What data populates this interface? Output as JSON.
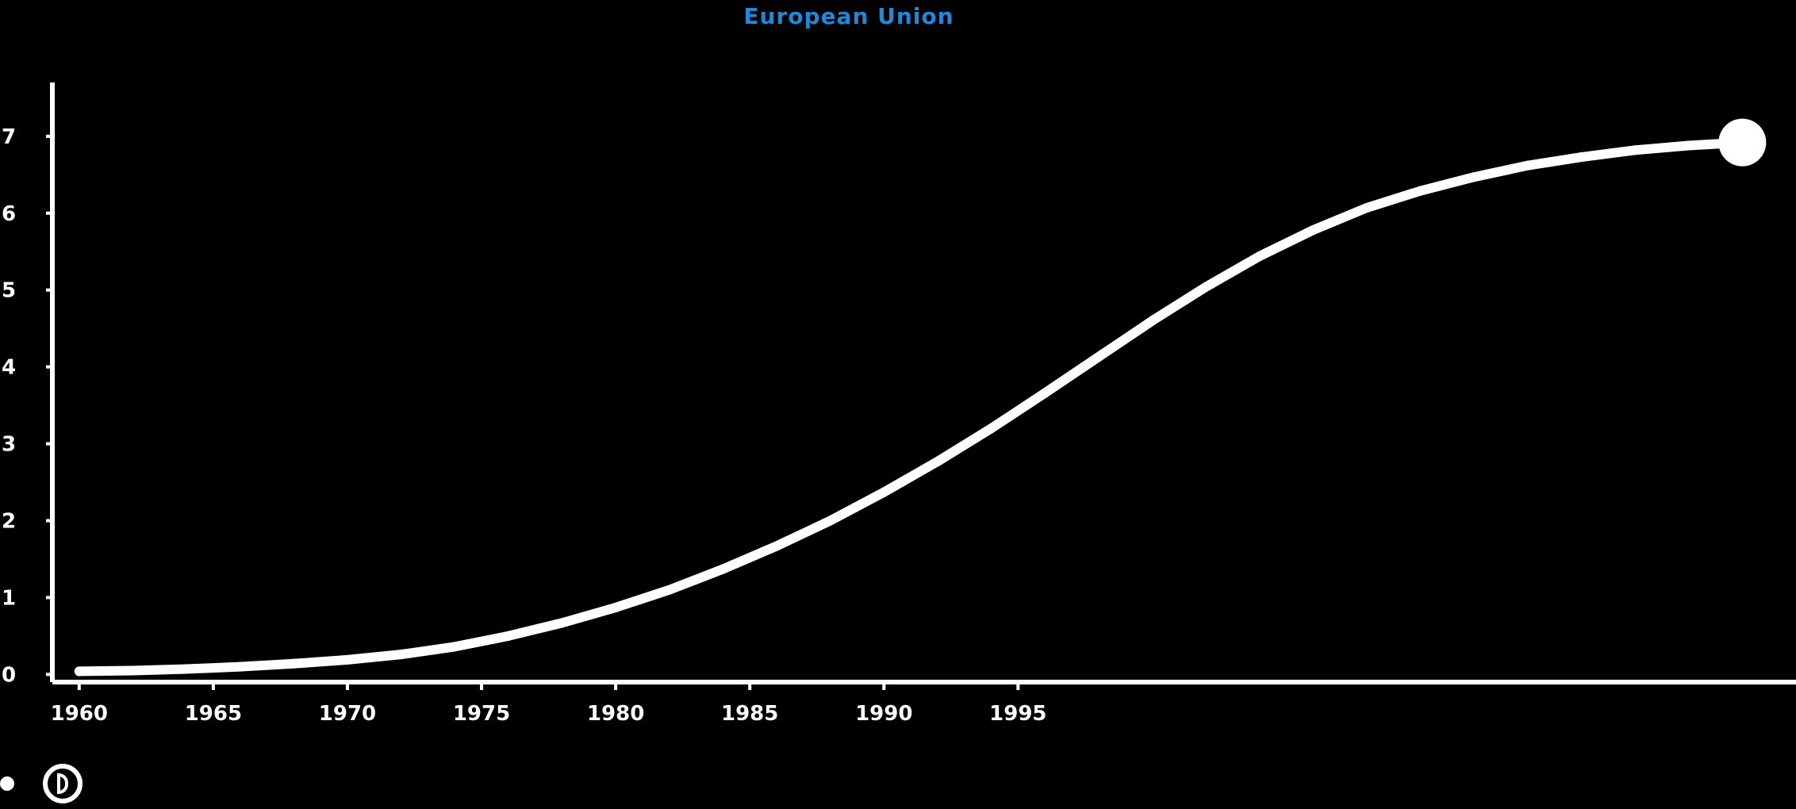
{
  "chart_data": {
    "type": "line",
    "title": "European Union",
    "title_color": "#1f88d9",
    "line_color": "#ffffff",
    "background_color": "#000000",
    "x": [
      1960,
      1962,
      1964,
      1966,
      1968,
      1970,
      1972,
      1974,
      1976,
      1978,
      1980,
      1982,
      1984,
      1986,
      1988,
      1990,
      1992,
      1994,
      1996,
      1998,
      2000,
      2002,
      2004,
      2006,
      2008,
      2010,
      2012,
      2014,
      2016,
      2018,
      2020,
      2022
    ],
    "series": [
      {
        "values": [
          0.04,
          0.05,
          0.07,
          0.1,
          0.14,
          0.19,
          0.26,
          0.36,
          0.5,
          0.67,
          0.87,
          1.1,
          1.37,
          1.67,
          2.0,
          2.37,
          2.77,
          3.2,
          3.66,
          4.13,
          4.6,
          5.04,
          5.44,
          5.78,
          6.07,
          6.29,
          6.47,
          6.62,
          6.73,
          6.82,
          6.88,
          6.92
        ]
      }
    ],
    "xlim": [
      1959,
      2024
    ],
    "ylim": [
      -0.1,
      7.7
    ],
    "xticks": [
      "1960",
      "1965",
      "1970",
      "1975",
      "1980",
      "1985",
      "1990",
      "1995"
    ],
    "yticks": [
      "0",
      "1",
      "2",
      "3",
      "4",
      "5",
      "6",
      "7"
    ],
    "grid": false,
    "legend_position": "bottom-left",
    "legend": [
      "",
      ""
    ]
  }
}
